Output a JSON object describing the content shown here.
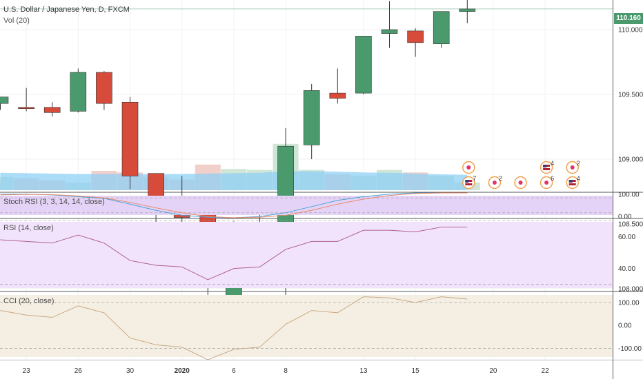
{
  "header": {
    "title": "U.S. Dollar / Japanese Yen, D, FXCM",
    "volume_label": "Vol (20)",
    "last_price": "110.160"
  },
  "colors": {
    "up": "#4a9a6e",
    "down": "#d64b3a",
    "volume_ma": "#8fd0f5",
    "stoch_fill": "#e5d3f7",
    "rsi_fill": "#f1e3fb",
    "cci_fill": "#f5efe3"
  },
  "chart_data": [
    {
      "type": "candlestick",
      "title": "U.S. Dollar / Japanese Yen, D, FXCM",
      "y_ticks": [
        "110.000",
        "109.500",
        "109.000",
        "108.500",
        "108.000"
      ],
      "x_ticks": [
        "23",
        "26",
        "30",
        "2020",
        "6",
        "8",
        "13",
        "15",
        "20",
        "22"
      ],
      "candles": [
        {
          "date": "Dec 20",
          "open": 109.43,
          "high": 109.48,
          "low": 109.38,
          "close": 109.48
        },
        {
          "date": "Dec 23",
          "open": 109.4,
          "high": 109.55,
          "low": 109.37,
          "close": 109.39
        },
        {
          "date": "Dec 24",
          "open": 109.4,
          "high": 109.44,
          "low": 109.33,
          "close": 109.36
        },
        {
          "date": "Dec 26",
          "open": 109.37,
          "high": 109.7,
          "low": 109.36,
          "close": 109.67
        },
        {
          "date": "Dec 27",
          "open": 109.67,
          "high": 109.68,
          "low": 109.38,
          "close": 109.43
        },
        {
          "date": "Dec 30",
          "open": 109.44,
          "high": 109.48,
          "low": 108.77,
          "close": 108.87
        },
        {
          "date": "Dec 31",
          "open": 108.89,
          "high": 108.89,
          "low": 108.48,
          "close": 108.62
        },
        {
          "date": "Jan 2",
          "open": 108.6,
          "high": 108.87,
          "low": 108.21,
          "close": 108.55
        },
        {
          "date": "Jan 3",
          "open": 108.58,
          "high": 108.61,
          "low": 107.84,
          "close": 108.13
        },
        {
          "date": "Jan 6",
          "open": 107.86,
          "high": 108.52,
          "low": 107.8,
          "close": 108.37
        },
        {
          "date": "Jan 7",
          "open": 108.35,
          "high": 108.64,
          "low": 108.25,
          "close": 108.4
        },
        {
          "date": "Jan 8",
          "open": 108.42,
          "high": 109.24,
          "low": 107.65,
          "close": 109.1
        },
        {
          "date": "Jan 9",
          "open": 109.11,
          "high": 109.58,
          "low": 109.0,
          "close": 109.53
        },
        {
          "date": "Jan 10",
          "open": 109.51,
          "high": 109.7,
          "low": 109.43,
          "close": 109.47
        },
        {
          "date": "Jan 13",
          "open": 109.51,
          "high": 109.95,
          "low": 109.5,
          "close": 109.95
        },
        {
          "date": "Jan 14",
          "open": 109.97,
          "high": 110.22,
          "low": 109.86,
          "close": 110.0
        },
        {
          "date": "Jan 15",
          "open": 109.99,
          "high": 110.01,
          "low": 109.79,
          "close": 109.9
        },
        {
          "date": "Jan 16",
          "open": 109.89,
          "high": 110.13,
          "low": 109.86,
          "close": 110.14
        },
        {
          "date": "Jan 17",
          "open": 110.14,
          "high": 110.28,
          "low": 110.05,
          "close": 110.16
        }
      ],
      "volume": [
        {
          "value": 0.68,
          "dir": "up"
        },
        {
          "value": 0.62,
          "dir": "down"
        },
        {
          "value": 0.52,
          "dir": "down"
        },
        {
          "value": 0.4,
          "dir": "up"
        },
        {
          "value": 1.0,
          "dir": "down"
        },
        {
          "value": 0.92,
          "dir": "down"
        },
        {
          "value": 0.7,
          "dir": "down"
        },
        {
          "value": 0.55,
          "dir": "down"
        },
        {
          "value": 1.33,
          "dir": "down"
        },
        {
          "value": 1.1,
          "dir": "up"
        },
        {
          "value": 1.05,
          "dir": "up"
        },
        {
          "value": 2.4,
          "dir": "up"
        },
        {
          "value": 1.05,
          "dir": "up"
        },
        {
          "value": 0.82,
          "dir": "down"
        },
        {
          "value": 0.75,
          "dir": "up"
        },
        {
          "value": 1.05,
          "dir": "up"
        },
        {
          "value": 0.92,
          "dir": "down"
        },
        {
          "value": 0.75,
          "dir": "up"
        },
        {
          "value": 0.4,
          "dir": "up"
        }
      ],
      "volume_ma": [
        0.9,
        0.88,
        0.86,
        0.84,
        0.84,
        0.84,
        0.84,
        0.84,
        0.86,
        0.88,
        0.9,
        0.98,
        0.98,
        0.96,
        0.92,
        0.9,
        0.86,
        0.82,
        0.8
      ],
      "event_markers": [
        {
          "col": 18,
          "row": "upper",
          "count": ""
        },
        {
          "col": 18,
          "row": "lower",
          "count": "7",
          "flag": "US"
        },
        {
          "col": 19,
          "row": "lower",
          "count": "2"
        },
        {
          "col": 20,
          "row": "lower",
          "count": ""
        },
        {
          "col": 21,
          "row": "upper",
          "count": "4",
          "flag": "US"
        },
        {
          "col": 21,
          "row": "lower",
          "count": "6"
        },
        {
          "col": 22,
          "row": "upper",
          "count": "2"
        },
        {
          "col": 22,
          "row": "lower",
          "count": "4",
          "flag": "US"
        }
      ]
    },
    {
      "type": "line",
      "title": "Stoch RSI (3, 3, 14, 14, close)",
      "y_ticks": [
        "100.00",
        "0.00"
      ],
      "ylim": [
        0,
        100
      ],
      "series": [
        {
          "values": [
            95,
            95,
            92,
            85,
            78,
            55,
            30,
            10,
            2,
            0,
            5,
            20,
            45,
            70,
            85,
            95,
            100,
            100,
            100
          ]
        },
        {
          "values": [
            92,
            94,
            93,
            88,
            80,
            62,
            40,
            20,
            5,
            0,
            2,
            10,
            30,
            55,
            75,
            90,
            98,
            100,
            100
          ]
        }
      ]
    },
    {
      "type": "line",
      "title": "RSI (14, close)",
      "y_ticks": [
        "60.00",
        "40.00"
      ],
      "ylim": [
        26,
        71
      ],
      "series": [
        {
          "values": [
            58,
            57,
            56,
            61,
            56,
            45,
            42,
            41,
            33,
            40,
            41,
            52,
            57,
            57,
            64,
            64,
            63,
            66,
            66
          ]
        }
      ]
    },
    {
      "type": "line",
      "title": "CCI (20, close)",
      "y_ticks": [
        "100.00",
        "0.00",
        "-100.00"
      ],
      "ylim": [
        -150,
        145
      ],
      "series": [
        {
          "values": [
            65,
            45,
            35,
            85,
            55,
            -55,
            -85,
            -95,
            -150,
            -105,
            -95,
            5,
            65,
            55,
            125,
            120,
            100,
            125,
            115
          ]
        }
      ]
    }
  ]
}
